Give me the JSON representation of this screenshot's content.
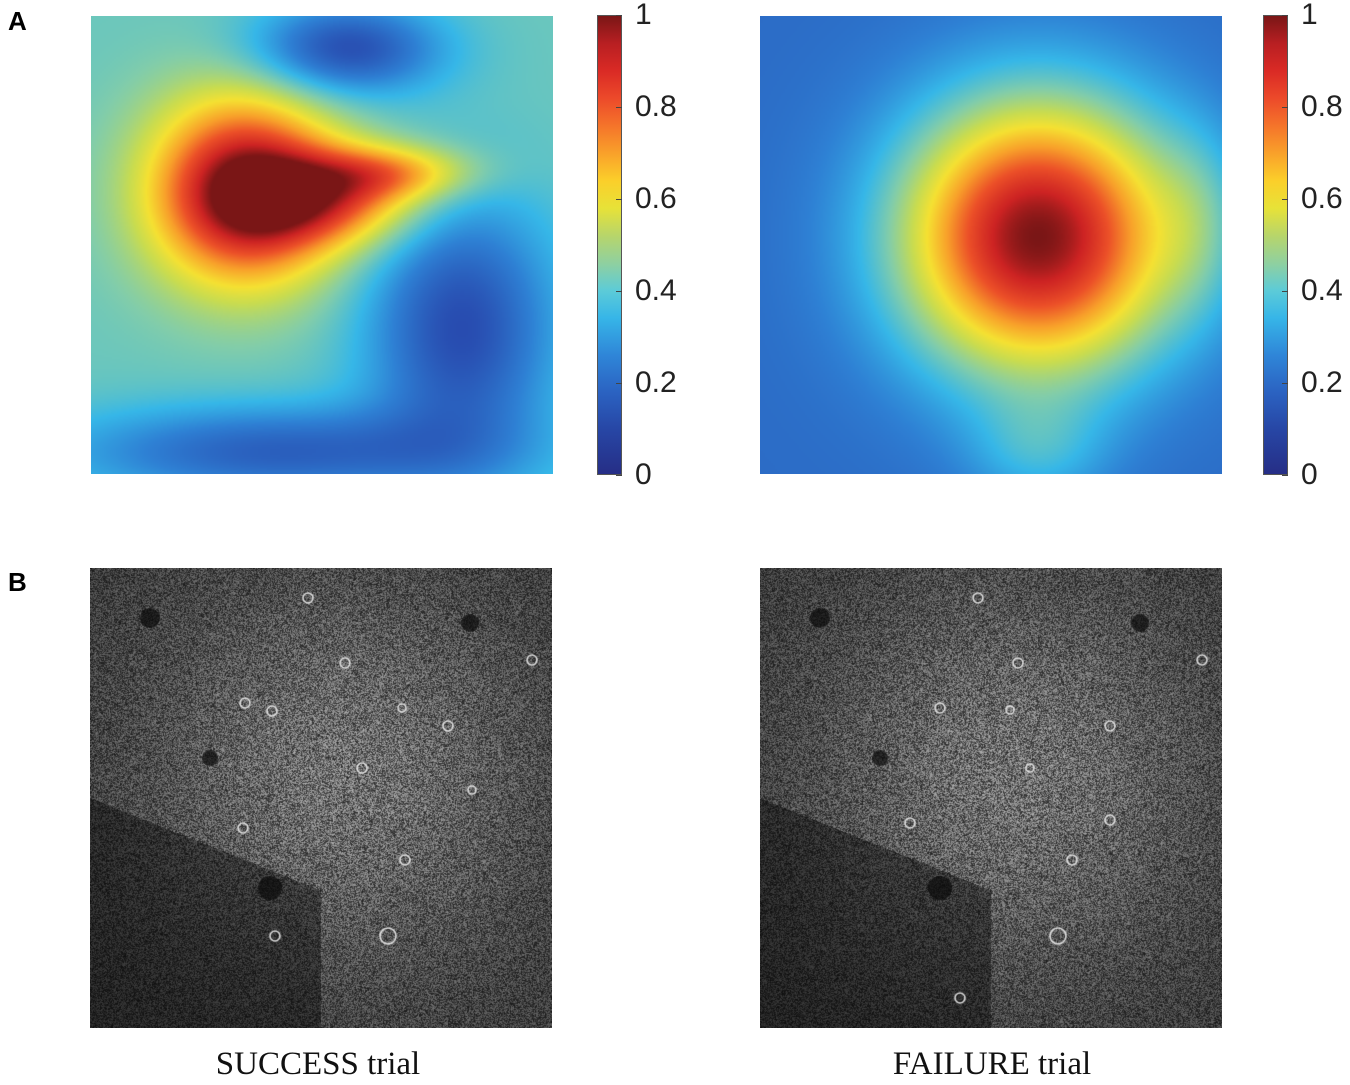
{
  "panels": {
    "a": "A",
    "b": "B"
  },
  "chart_data": [
    {
      "type": "heatmap",
      "title": "",
      "colorbar": {
        "range": [
          0,
          1
        ],
        "ticks": [
          "0",
          "0.2",
          "0.4",
          "0.6",
          "0.8",
          "1"
        ],
        "colormap": "jet"
      },
      "hotspots": [
        {
          "x": 0.35,
          "y": 0.64,
          "value": 1.0
        },
        {
          "x": 0.5,
          "y": 0.56,
          "value": 0.7
        },
        {
          "x": 0.6,
          "y": 0.66,
          "value": 0.65
        }
      ],
      "coldspots": [
        {
          "x": 0.5,
          "y": 0.85,
          "value": 0.15
        },
        {
          "x": 0.78,
          "y": 0.3,
          "value": 0.1
        }
      ]
    },
    {
      "type": "heatmap",
      "title": "",
      "colorbar": {
        "range": [
          0,
          1
        ],
        "ticks": [
          "0",
          "0.2",
          "0.4",
          "0.6",
          "0.8",
          "1"
        ],
        "colormap": "jet"
      },
      "hotspots": [
        {
          "x": 0.63,
          "y": 0.53,
          "value": 1.0
        }
      ],
      "coldspots": [
        {
          "x": 0.05,
          "y": 0.95,
          "value": 0.1
        },
        {
          "x": 0.95,
          "y": 0.95,
          "value": 0.1
        }
      ]
    }
  ],
  "images": [
    {
      "caption": "SUCCESS trial",
      "kind": "grayscale-microscopy"
    },
    {
      "caption": "FAILURE trial",
      "kind": "grayscale-microscopy"
    }
  ]
}
